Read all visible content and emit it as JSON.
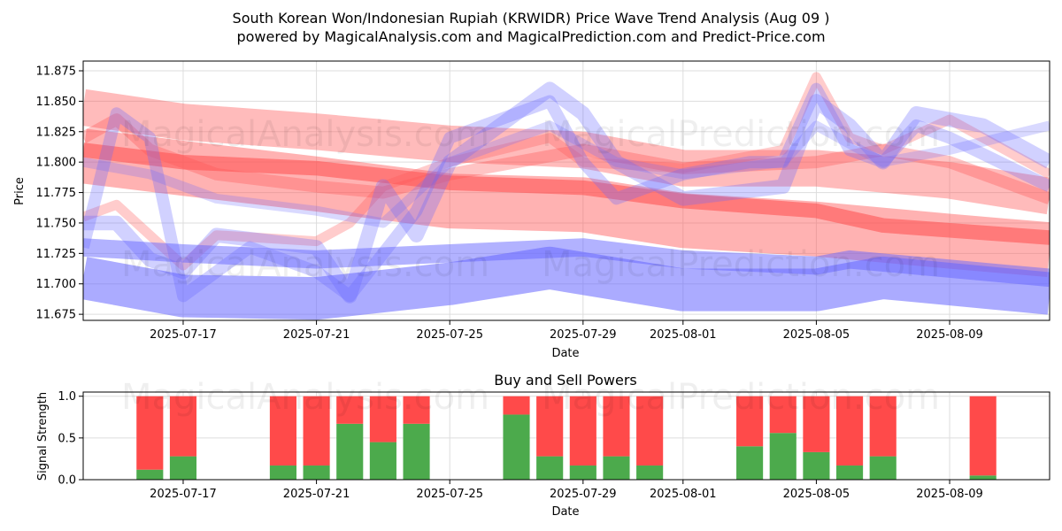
{
  "title_line1": "South Korean Won/Indonesian Rupiah (KRWIDR) Price Wave Trend Analysis (Aug 09 )",
  "title_line2": "powered by MagicalAnalysis.com and MagicalPrediction.com and Predict-Price.com",
  "watermarks": [
    "MagicalAnalysis.com",
    "MagicalPrediction.com"
  ],
  "colors": {
    "red": "#ff5555",
    "blue": "#6666ff",
    "buy": "#4caa4c",
    "sell": "#ff4a4a",
    "grid": "#dddddd"
  },
  "chart_data": [
    {
      "type": "line",
      "title": "",
      "xlabel": "Date",
      "ylabel": "Price",
      "x_range": [
        "2025-07-14",
        "2025-08-12"
      ],
      "ylim": [
        11.67,
        11.883
      ],
      "yticks": [
        11.675,
        11.7,
        11.725,
        11.75,
        11.775,
        11.8,
        11.825,
        11.85,
        11.875
      ],
      "xticks": [
        "2025-07-17",
        "2025-07-21",
        "2025-07-25",
        "2025-07-29",
        "2025-08-01",
        "2025-08-05",
        "2025-08-09"
      ],
      "series": [
        {
          "name": "red-band-upper",
          "color": "red",
          "width": 0.03,
          "alpha": 0.4,
          "x": [
            "2025-07-14",
            "2025-07-17",
            "2025-07-21",
            "2025-07-25",
            "2025-07-29",
            "2025-08-01",
            "2025-08-05",
            "2025-08-09",
            "2025-08-12"
          ],
          "y": [
            11.845,
            11.833,
            11.825,
            11.815,
            11.81,
            11.795,
            11.795,
            11.785,
            11.772
          ]
        },
        {
          "name": "red-band-main",
          "color": "red",
          "width": 0.045,
          "alpha": 0.45,
          "x": [
            "2025-07-14",
            "2025-07-17",
            "2025-07-21",
            "2025-07-25",
            "2025-07-29",
            "2025-08-01",
            "2025-08-05",
            "2025-08-09",
            "2025-08-12"
          ],
          "y": [
            11.805,
            11.795,
            11.782,
            11.768,
            11.765,
            11.752,
            11.745,
            11.735,
            11.728
          ]
        },
        {
          "name": "red-trend",
          "color": "red",
          "width": 0.012,
          "alpha": 0.6,
          "x": [
            "2025-07-14",
            "2025-07-17",
            "2025-07-21",
            "2025-07-25",
            "2025-07-29",
            "2025-08-01",
            "2025-08-05",
            "2025-08-07",
            "2025-08-12"
          ],
          "y": [
            11.81,
            11.8,
            11.795,
            11.783,
            11.779,
            11.768,
            11.76,
            11.748,
            11.738
          ]
        },
        {
          "name": "red-wave-1",
          "color": "red",
          "width": 0.008,
          "alpha": 0.3,
          "x": [
            "2025-07-14",
            "2025-07-15",
            "2025-07-17",
            "2025-07-18",
            "2025-07-21",
            "2025-07-22",
            "2025-07-23",
            "2025-07-25",
            "2025-07-28",
            "2025-07-29",
            "2025-08-01",
            "2025-08-04",
            "2025-08-05",
            "2025-08-06",
            "2025-08-07",
            "2025-08-09",
            "2025-08-12"
          ],
          "y": [
            11.755,
            11.765,
            11.715,
            11.74,
            11.735,
            11.75,
            11.78,
            11.8,
            11.82,
            11.8,
            11.795,
            11.81,
            11.87,
            11.82,
            11.81,
            11.835,
            11.79
          ]
        },
        {
          "name": "red-wave-2",
          "color": "red",
          "width": 0.01,
          "alpha": 0.35,
          "x": [
            "2025-07-14",
            "2025-07-15",
            "2025-07-16",
            "2025-07-18",
            "2025-07-21",
            "2025-07-23",
            "2025-07-25",
            "2025-07-29",
            "2025-08-01",
            "2025-08-05",
            "2025-08-07",
            "2025-08-09",
            "2025-08-12"
          ],
          "y": [
            11.82,
            11.835,
            11.81,
            11.79,
            11.78,
            11.775,
            11.79,
            11.81,
            11.795,
            11.8,
            11.81,
            11.8,
            11.77
          ]
        },
        {
          "name": "blue-band-lower",
          "color": "blue",
          "width": 0.035,
          "alpha": 0.55,
          "x": [
            "2025-07-14",
            "2025-07-17",
            "2025-07-21",
            "2025-07-25",
            "2025-07-28",
            "2025-08-01",
            "2025-08-05",
            "2025-08-07",
            "2025-08-12"
          ],
          "y": [
            11.705,
            11.69,
            11.688,
            11.7,
            11.713,
            11.695,
            11.695,
            11.705,
            11.692
          ]
        },
        {
          "name": "blue-trend",
          "color": "blue",
          "width": 0.015,
          "alpha": 0.5,
          "x": [
            "2025-07-14",
            "2025-07-17",
            "2025-07-21",
            "2025-07-25",
            "2025-07-29",
            "2025-08-01",
            "2025-08-05",
            "2025-08-06",
            "2025-08-08",
            "2025-08-12"
          ],
          "y": [
            11.73,
            11.725,
            11.72,
            11.725,
            11.73,
            11.72,
            11.715,
            11.72,
            11.715,
            11.705
          ]
        },
        {
          "name": "blue-wave-1",
          "color": "blue",
          "width": 0.012,
          "alpha": 0.3,
          "x": [
            "2025-07-14",
            "2025-07-15",
            "2025-07-16",
            "2025-07-17",
            "2025-07-18",
            "2025-07-21",
            "2025-07-22",
            "2025-07-23",
            "2025-07-24",
            "2025-07-25",
            "2025-07-28",
            "2025-07-29",
            "2025-07-30",
            "2025-08-01",
            "2025-08-04",
            "2025-08-05",
            "2025-08-06",
            "2025-08-07",
            "2025-08-08",
            "2025-08-10",
            "2025-08-12"
          ],
          "y": [
            11.75,
            11.75,
            11.72,
            11.71,
            11.74,
            11.73,
            11.69,
            11.78,
            11.74,
            11.8,
            11.86,
            11.84,
            11.8,
            11.77,
            11.78,
            11.85,
            11.83,
            11.8,
            11.84,
            11.83,
            11.8
          ]
        },
        {
          "name": "blue-wave-2",
          "color": "blue",
          "width": 0.01,
          "alpha": 0.3,
          "x": [
            "2025-07-14",
            "2025-07-15",
            "2025-07-16",
            "2025-07-17",
            "2025-07-19",
            "2025-07-21",
            "2025-07-22",
            "2025-07-24",
            "2025-07-25",
            "2025-07-28",
            "2025-07-29",
            "2025-07-30",
            "2025-08-01",
            "2025-08-03",
            "2025-08-04",
            "2025-08-05",
            "2025-08-06",
            "2025-08-07",
            "2025-08-08",
            "2025-08-09",
            "2025-08-12"
          ],
          "y": [
            11.73,
            11.84,
            11.82,
            11.69,
            11.73,
            11.71,
            11.69,
            11.76,
            11.82,
            11.85,
            11.8,
            11.77,
            11.79,
            11.8,
            11.8,
            11.86,
            11.81,
            11.8,
            11.83,
            11.82,
            11.78
          ]
        },
        {
          "name": "blue-wave-3",
          "color": "blue",
          "width": 0.008,
          "alpha": 0.25,
          "x": [
            "2025-07-14",
            "2025-07-16",
            "2025-07-18",
            "2025-07-21",
            "2025-07-23",
            "2025-07-25",
            "2025-07-28",
            "2025-07-30",
            "2025-08-01",
            "2025-08-04",
            "2025-08-05",
            "2025-08-07",
            "2025-08-09",
            "2025-08-12"
          ],
          "y": [
            11.8,
            11.79,
            11.77,
            11.76,
            11.75,
            11.8,
            11.83,
            11.8,
            11.79,
            11.8,
            11.83,
            11.8,
            11.81,
            11.83
          ]
        }
      ]
    },
    {
      "type": "bar",
      "title": "Buy and Sell Powers",
      "xlabel": "Date",
      "ylabel": "Signal Strength",
      "ylim": [
        0,
        1.05
      ],
      "yticks": [
        0.0,
        0.5,
        1.0
      ],
      "x_range": [
        "2025-07-14",
        "2025-08-12"
      ],
      "xticks": [
        "2025-07-17",
        "2025-07-21",
        "2025-07-25",
        "2025-07-29",
        "2025-08-01",
        "2025-08-05",
        "2025-08-09"
      ],
      "categories": [
        "2025-07-16",
        "2025-07-17",
        "2025-07-20",
        "2025-07-21",
        "2025-07-22",
        "2025-07-23",
        "2025-07-24",
        "2025-07-27",
        "2025-07-28",
        "2025-07-29",
        "2025-07-30",
        "2025-07-31",
        "2025-08-03",
        "2025-08-04",
        "2025-08-05",
        "2025-08-06",
        "2025-08-07",
        "2025-08-10"
      ],
      "series": [
        {
          "name": "Buy",
          "color": "buy",
          "values": [
            0.12,
            0.28,
            0.17,
            0.17,
            0.67,
            0.45,
            0.67,
            0.78,
            0.28,
            0.17,
            0.28,
            0.17,
            0.4,
            0.56,
            0.33,
            0.17,
            0.28,
            0.05
          ]
        },
        {
          "name": "Sell",
          "color": "sell",
          "values": [
            0.88,
            0.72,
            0.83,
            0.83,
            0.33,
            0.55,
            0.33,
            0.22,
            0.72,
            0.83,
            0.72,
            0.83,
            0.6,
            0.44,
            0.67,
            0.83,
            0.72,
            0.95
          ]
        }
      ]
    }
  ]
}
